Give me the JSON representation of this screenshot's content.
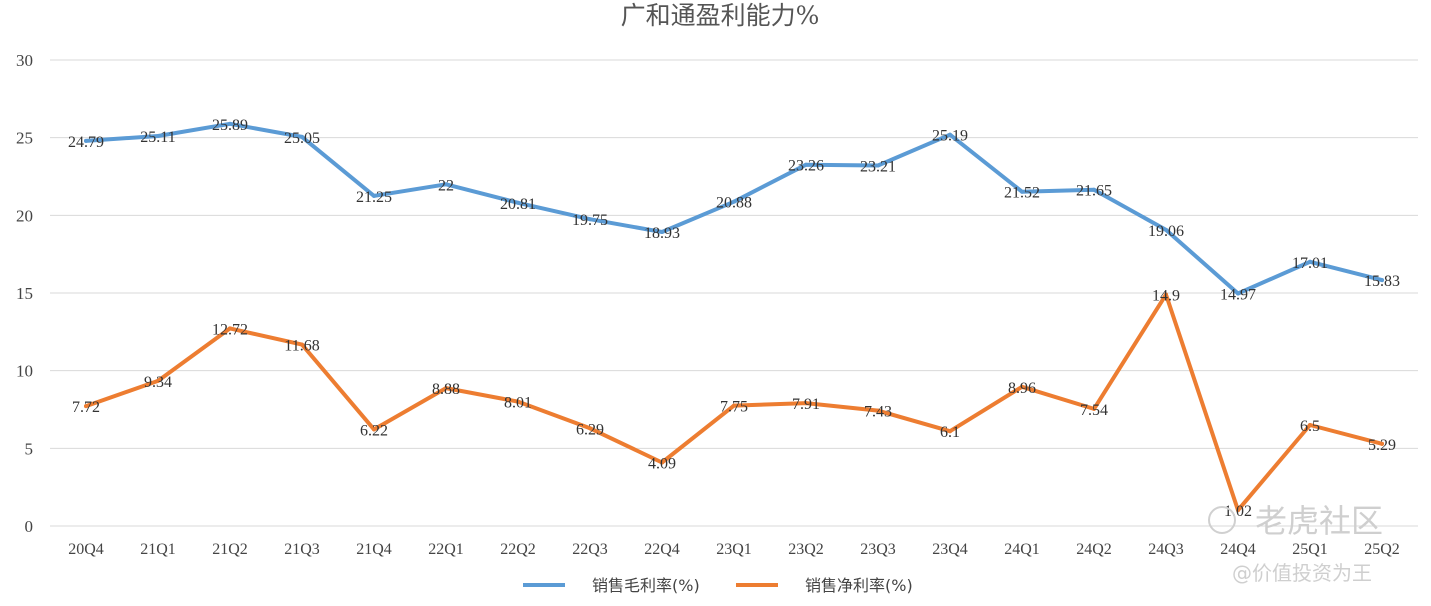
{
  "chart_data": {
    "type": "line",
    "title": "广和通盈利能力%",
    "xlabel": "",
    "ylabel": "",
    "ylim": [
      0,
      30
    ],
    "yticks": [
      0,
      5,
      10,
      15,
      20,
      25,
      30
    ],
    "grid": true,
    "legend_position": "bottom",
    "categories": [
      "20Q4",
      "21Q1",
      "21Q2",
      "21Q3",
      "21Q4",
      "22Q1",
      "22Q2",
      "22Q3",
      "22Q4",
      "23Q1",
      "23Q2",
      "23Q3",
      "23Q4",
      "24Q1",
      "24Q2",
      "24Q3",
      "24Q4",
      "25Q1",
      "25Q2"
    ],
    "series": [
      {
        "name": "销售毛利率(%)",
        "color": "#5B9BD5",
        "values": [
          24.79,
          25.11,
          25.89,
          25.05,
          21.25,
          22,
          20.81,
          19.75,
          18.93,
          20.88,
          23.26,
          23.21,
          25.19,
          21.52,
          21.65,
          19.06,
          14.97,
          17.01,
          15.83
        ],
        "labels": [
          "24.79",
          "25.11",
          "25.89",
          "25.05",
          "21.25",
          "22",
          "20.81",
          "19.75",
          "18.93",
          "20.88",
          "23.26",
          "23.21",
          "25.19",
          "21.52",
          "21.65",
          "19.06",
          "14.97",
          "17.01",
          "15.83"
        ]
      },
      {
        "name": "销售净利率(%)",
        "color": "#ED7D31",
        "values": [
          7.72,
          9.34,
          12.72,
          11.68,
          6.22,
          8.88,
          8.01,
          6.29,
          4.09,
          7.75,
          7.91,
          7.43,
          6.1,
          8.96,
          7.54,
          14.9,
          1.02,
          6.5,
          5.29
        ],
        "labels": [
          "7.72",
          "9.34",
          "12.72",
          "11.68",
          "6.22",
          "8.88",
          "8.01",
          "6.29",
          "4.09",
          "7.75",
          "7.91",
          "7.43",
          "6.1",
          "8.96",
          "7.54",
          "14.9",
          "1.02",
          "6.5",
          "5.29"
        ]
      }
    ]
  },
  "watermark": {
    "brand": "老虎社区",
    "user": "@价值投资为王"
  }
}
